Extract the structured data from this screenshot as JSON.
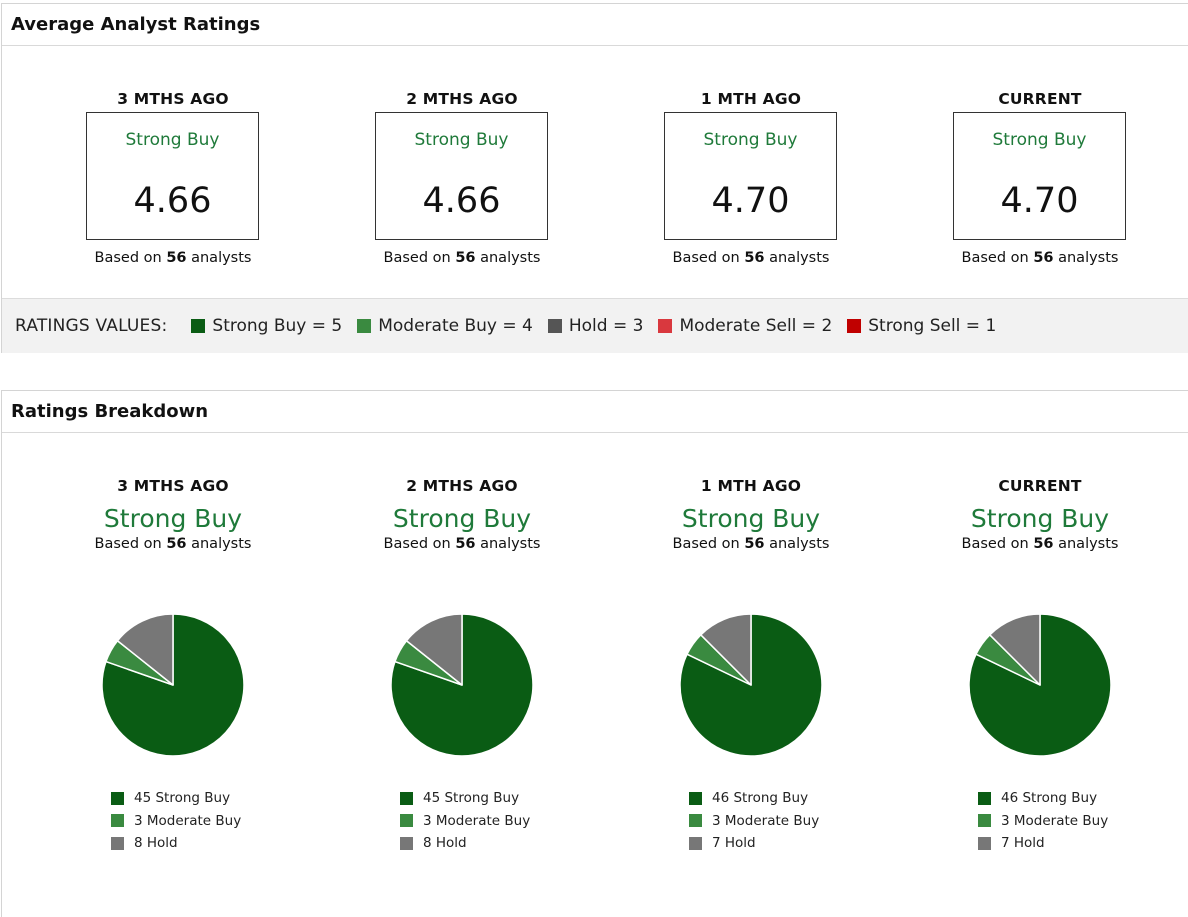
{
  "average": {
    "title": "Average Analyst Ratings",
    "based_prefix": "Based on ",
    "based_suffix": " analysts",
    "periods": [
      {
        "label": "3 MTHS AGO",
        "rating": "Strong Buy",
        "score": "4.66",
        "analysts": "56"
      },
      {
        "label": "2 MTHS AGO",
        "rating": "Strong Buy",
        "score": "4.66",
        "analysts": "56"
      },
      {
        "label": "1 MTH AGO",
        "rating": "Strong Buy",
        "score": "4.70",
        "analysts": "56"
      },
      {
        "label": "CURRENT",
        "rating": "Strong Buy",
        "score": "4.70",
        "analysts": "56"
      }
    ],
    "legend": {
      "title": "RATINGS VALUES:",
      "items": [
        {
          "label": "Strong Buy = 5",
          "color": "#0a5c14"
        },
        {
          "label": "Moderate Buy = 4",
          "color": "#3a8a40"
        },
        {
          "label": "Hold = 3",
          "color": "#555555"
        },
        {
          "label": "Moderate Sell = 2",
          "color": "#d9383e"
        },
        {
          "label": "Strong Sell = 1",
          "color": "#c00000"
        }
      ]
    }
  },
  "breakdown": {
    "title": "Ratings Breakdown",
    "based_prefix": "Based on ",
    "based_suffix": " analysts",
    "periods": [
      {
        "label": "3 MTHS AGO",
        "rating": "Strong Buy",
        "analysts": "56",
        "legend": [
          "45 Strong Buy",
          "3 Moderate Buy",
          "8 Hold"
        ]
      },
      {
        "label": "2 MTHS AGO",
        "rating": "Strong Buy",
        "analysts": "56",
        "legend": [
          "45 Strong Buy",
          "3 Moderate Buy",
          "8 Hold"
        ]
      },
      {
        "label": "1 MTH AGO",
        "rating": "Strong Buy",
        "analysts": "56",
        "legend": [
          "46 Strong Buy",
          "3 Moderate Buy",
          "7 Hold"
        ]
      },
      {
        "label": "CURRENT",
        "rating": "Strong Buy",
        "analysts": "56",
        "legend": [
          "46 Strong Buy",
          "3 Moderate Buy",
          "7 Hold"
        ]
      }
    ]
  },
  "chart_data": [
    {
      "type": "pie",
      "title": "3 MTHS AGO",
      "categories": [
        "Strong Buy",
        "Moderate Buy",
        "Hold"
      ],
      "values": [
        45,
        3,
        8
      ],
      "colors": [
        "#0a5c14",
        "#3a8a40",
        "#777777"
      ]
    },
    {
      "type": "pie",
      "title": "2 MTHS AGO",
      "categories": [
        "Strong Buy",
        "Moderate Buy",
        "Hold"
      ],
      "values": [
        45,
        3,
        8
      ],
      "colors": [
        "#0a5c14",
        "#3a8a40",
        "#777777"
      ]
    },
    {
      "type": "pie",
      "title": "1 MTH AGO",
      "categories": [
        "Strong Buy",
        "Moderate Buy",
        "Hold"
      ],
      "values": [
        46,
        3,
        7
      ],
      "colors": [
        "#0a5c14",
        "#3a8a40",
        "#777777"
      ]
    },
    {
      "type": "pie",
      "title": "CURRENT",
      "categories": [
        "Strong Buy",
        "Moderate Buy",
        "Hold"
      ],
      "values": [
        46,
        3,
        7
      ],
      "colors": [
        "#0a5c14",
        "#3a8a40",
        "#777777"
      ]
    }
  ]
}
